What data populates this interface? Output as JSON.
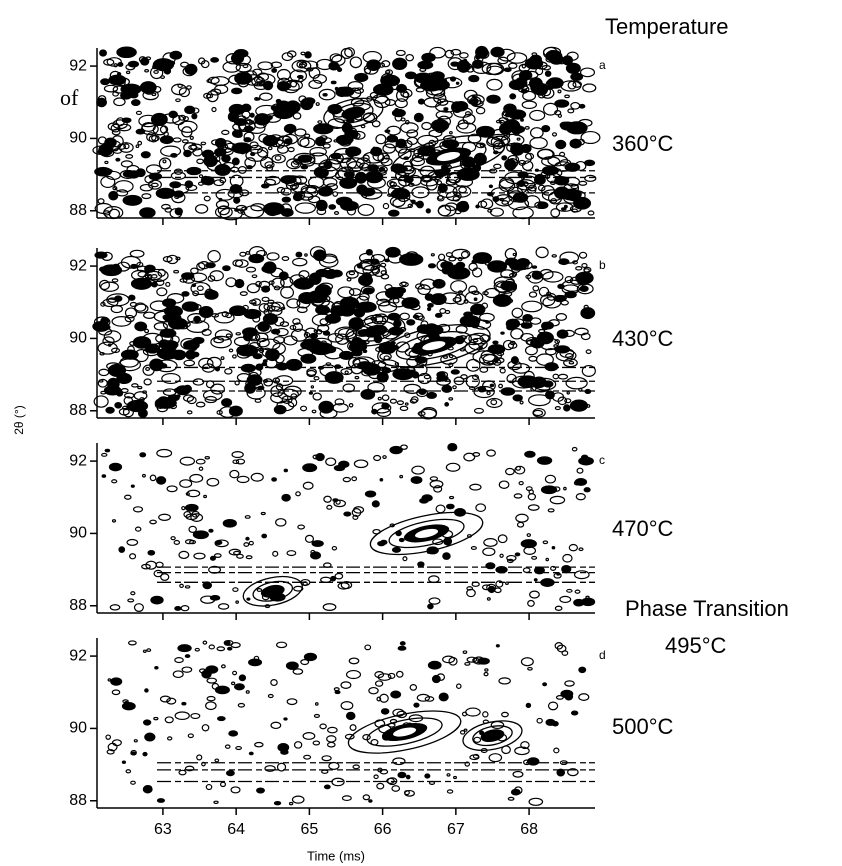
{
  "header": "Temperature",
  "fragment": "of",
  "y_axis_label": "2θ (°)",
  "x_axis_label": "Time (ms)",
  "annotations": [
    "Phase Transition",
    "495°C"
  ],
  "chart_data": [
    {
      "type": "contour",
      "panel_label": "a",
      "label": "360°C",
      "color": "#000000",
      "x": [
        66.9,
        65.6
      ],
      "y": [
        89.5,
        90.7
      ],
      "xlim": [
        62.1,
        68.9
      ],
      "ylim": [
        87.8,
        92.5
      ],
      "yticks": [
        88,
        90,
        92
      ]
    },
    {
      "type": "contour",
      "panel_label": "b",
      "label": "430°C",
      "color": "#000000",
      "x": [
        66.7,
        65.9
      ],
      "y": [
        89.8,
        90.2
      ],
      "xlim": [
        62.1,
        68.9
      ],
      "ylim": [
        87.8,
        92.5
      ],
      "yticks": [
        88,
        90,
        92
      ]
    },
    {
      "type": "contour",
      "panel_label": "c",
      "label": "470°C",
      "color": "#000000",
      "x": [
        66.6,
        64.5
      ],
      "y": [
        90.0,
        88.4
      ],
      "xlim": [
        62.1,
        68.9
      ],
      "ylim": [
        87.8,
        92.5
      ],
      "yticks": [
        88,
        90,
        92
      ]
    },
    {
      "type": "contour",
      "panel_label": "d",
      "label": "500°C",
      "color": "#000000",
      "x": [
        66.3,
        67.5
      ],
      "y": [
        89.9,
        89.8
      ],
      "xlim": [
        62.1,
        68.9
      ],
      "ylim": [
        87.8,
        92.5
      ],
      "yticks": [
        88,
        90,
        92
      ],
      "xticks": [
        63,
        64,
        65,
        66,
        67,
        68
      ]
    }
  ]
}
